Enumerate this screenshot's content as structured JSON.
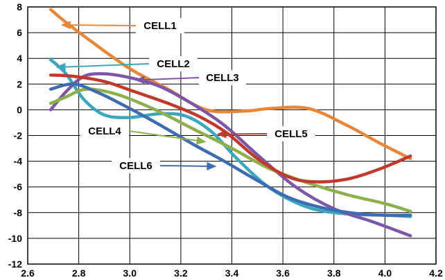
{
  "chart_data": {
    "type": "line",
    "title": "",
    "xlabel": "",
    "ylabel": "",
    "xlim": [
      2.6,
      4.2
    ],
    "ylim": [
      -12,
      8
    ],
    "grid": true,
    "x_ticks": [
      "2.6",
      "2.8",
      "3.0",
      "3.2",
      "3.4",
      "3.6",
      "3.8",
      "4.0",
      "4.2"
    ],
    "y_ticks": [
      "8",
      "6",
      "4",
      "2",
      "0",
      "-2",
      "-4",
      "-6",
      "-8",
      "-10",
      "-12"
    ],
    "series": [
      {
        "name": "CELL1",
        "color": "#E8873A",
        "points": [
          [
            2.69,
            7.8
          ],
          [
            2.75,
            6.8
          ],
          [
            2.85,
            5.3
          ],
          [
            3.0,
            3.2
          ],
          [
            3.15,
            1.6
          ],
          [
            3.3,
            0.0
          ],
          [
            3.45,
            -0.1
          ],
          [
            3.55,
            0.1
          ],
          [
            3.7,
            0.1
          ],
          [
            3.85,
            -1.2
          ],
          [
            3.98,
            -2.6
          ],
          [
            4.1,
            -3.8
          ]
        ],
        "label_anchor": [
          2.73,
          6.6
        ]
      },
      {
        "name": "CELL2",
        "color": "#3AA7BF",
        "points": [
          [
            2.69,
            3.9
          ],
          [
            2.75,
            2.8
          ],
          [
            2.82,
            0.8
          ],
          [
            2.9,
            -0.4
          ],
          [
            3.0,
            -0.6
          ],
          [
            3.12,
            -0.3
          ],
          [
            3.22,
            -0.5
          ],
          [
            3.32,
            -1.7
          ],
          [
            3.42,
            -3.8
          ],
          [
            3.55,
            -6.1
          ],
          [
            3.7,
            -7.6
          ],
          [
            3.85,
            -8.1
          ],
          [
            4.0,
            -8.2
          ],
          [
            4.1,
            -8.3
          ]
        ],
        "label_anchor": [
          2.71,
          3.3
        ]
      },
      {
        "name": "CELL3",
        "color": "#7B57A6",
        "points": [
          [
            2.69,
            0.0
          ],
          [
            2.75,
            1.4
          ],
          [
            2.82,
            2.6
          ],
          [
            2.9,
            2.8
          ],
          [
            3.0,
            2.5
          ],
          [
            3.12,
            1.8
          ],
          [
            3.25,
            0.4
          ],
          [
            3.37,
            -1.2
          ],
          [
            3.5,
            -3.5
          ],
          [
            3.65,
            -6.0
          ],
          [
            3.8,
            -7.7
          ],
          [
            3.95,
            -8.7
          ],
          [
            4.1,
            -9.8
          ]
        ],
        "label_anchor": [
          3.02,
          2.3
        ]
      },
      {
        "name": "CELL4",
        "color": "#8DB04C",
        "points": [
          [
            2.69,
            0.5
          ],
          [
            2.75,
            1.0
          ],
          [
            2.83,
            1.6
          ],
          [
            2.95,
            1.2
          ],
          [
            3.1,
            0.0
          ],
          [
            3.25,
            -1.5
          ],
          [
            3.4,
            -3.0
          ],
          [
            3.55,
            -4.6
          ],
          [
            3.7,
            -5.7
          ],
          [
            3.85,
            -6.6
          ],
          [
            4.0,
            -7.3
          ],
          [
            4.1,
            -7.9
          ]
        ],
        "label_anchor": [
          3.3,
          -2.5
        ]
      },
      {
        "name": "CELL5",
        "color": "#C0392B",
        "points": [
          [
            2.69,
            2.7
          ],
          [
            2.78,
            2.6
          ],
          [
            2.9,
            2.2
          ],
          [
            3.02,
            1.4
          ],
          [
            3.15,
            0.5
          ],
          [
            3.27,
            -0.5
          ],
          [
            3.38,
            -1.8
          ],
          [
            3.5,
            -3.8
          ],
          [
            3.62,
            -5.2
          ],
          [
            3.72,
            -5.6
          ],
          [
            3.85,
            -5.4
          ],
          [
            3.98,
            -4.6
          ],
          [
            4.1,
            -3.6
          ]
        ],
        "label_anchor": [
          3.34,
          -1.9
        ]
      },
      {
        "name": "CELL6",
        "color": "#3F6BB3",
        "points": [
          [
            2.69,
            1.6
          ],
          [
            2.78,
            2.0
          ],
          [
            2.88,
            1.3
          ],
          [
            3.0,
            0.1
          ],
          [
            3.12,
            -1.2
          ],
          [
            3.25,
            -2.7
          ],
          [
            3.37,
            -4.0
          ],
          [
            3.5,
            -5.5
          ],
          [
            3.62,
            -6.8
          ],
          [
            3.75,
            -7.6
          ],
          [
            3.9,
            -8.1
          ],
          [
            4.0,
            -8.2
          ],
          [
            4.1,
            -8.2
          ]
        ],
        "label_anchor": [
          3.34,
          -4.4
        ]
      }
    ],
    "callouts": [
      {
        "series": "CELL1",
        "label": "CELL1"
      },
      {
        "series": "CELL2",
        "label": "CELL2"
      },
      {
        "series": "CELL3",
        "label": "CELL3"
      },
      {
        "series": "CELL4",
        "label": "CELL4"
      },
      {
        "series": "CELL5",
        "label": "CELL5"
      },
      {
        "series": "CELL6",
        "label": "CELL6"
      }
    ]
  }
}
